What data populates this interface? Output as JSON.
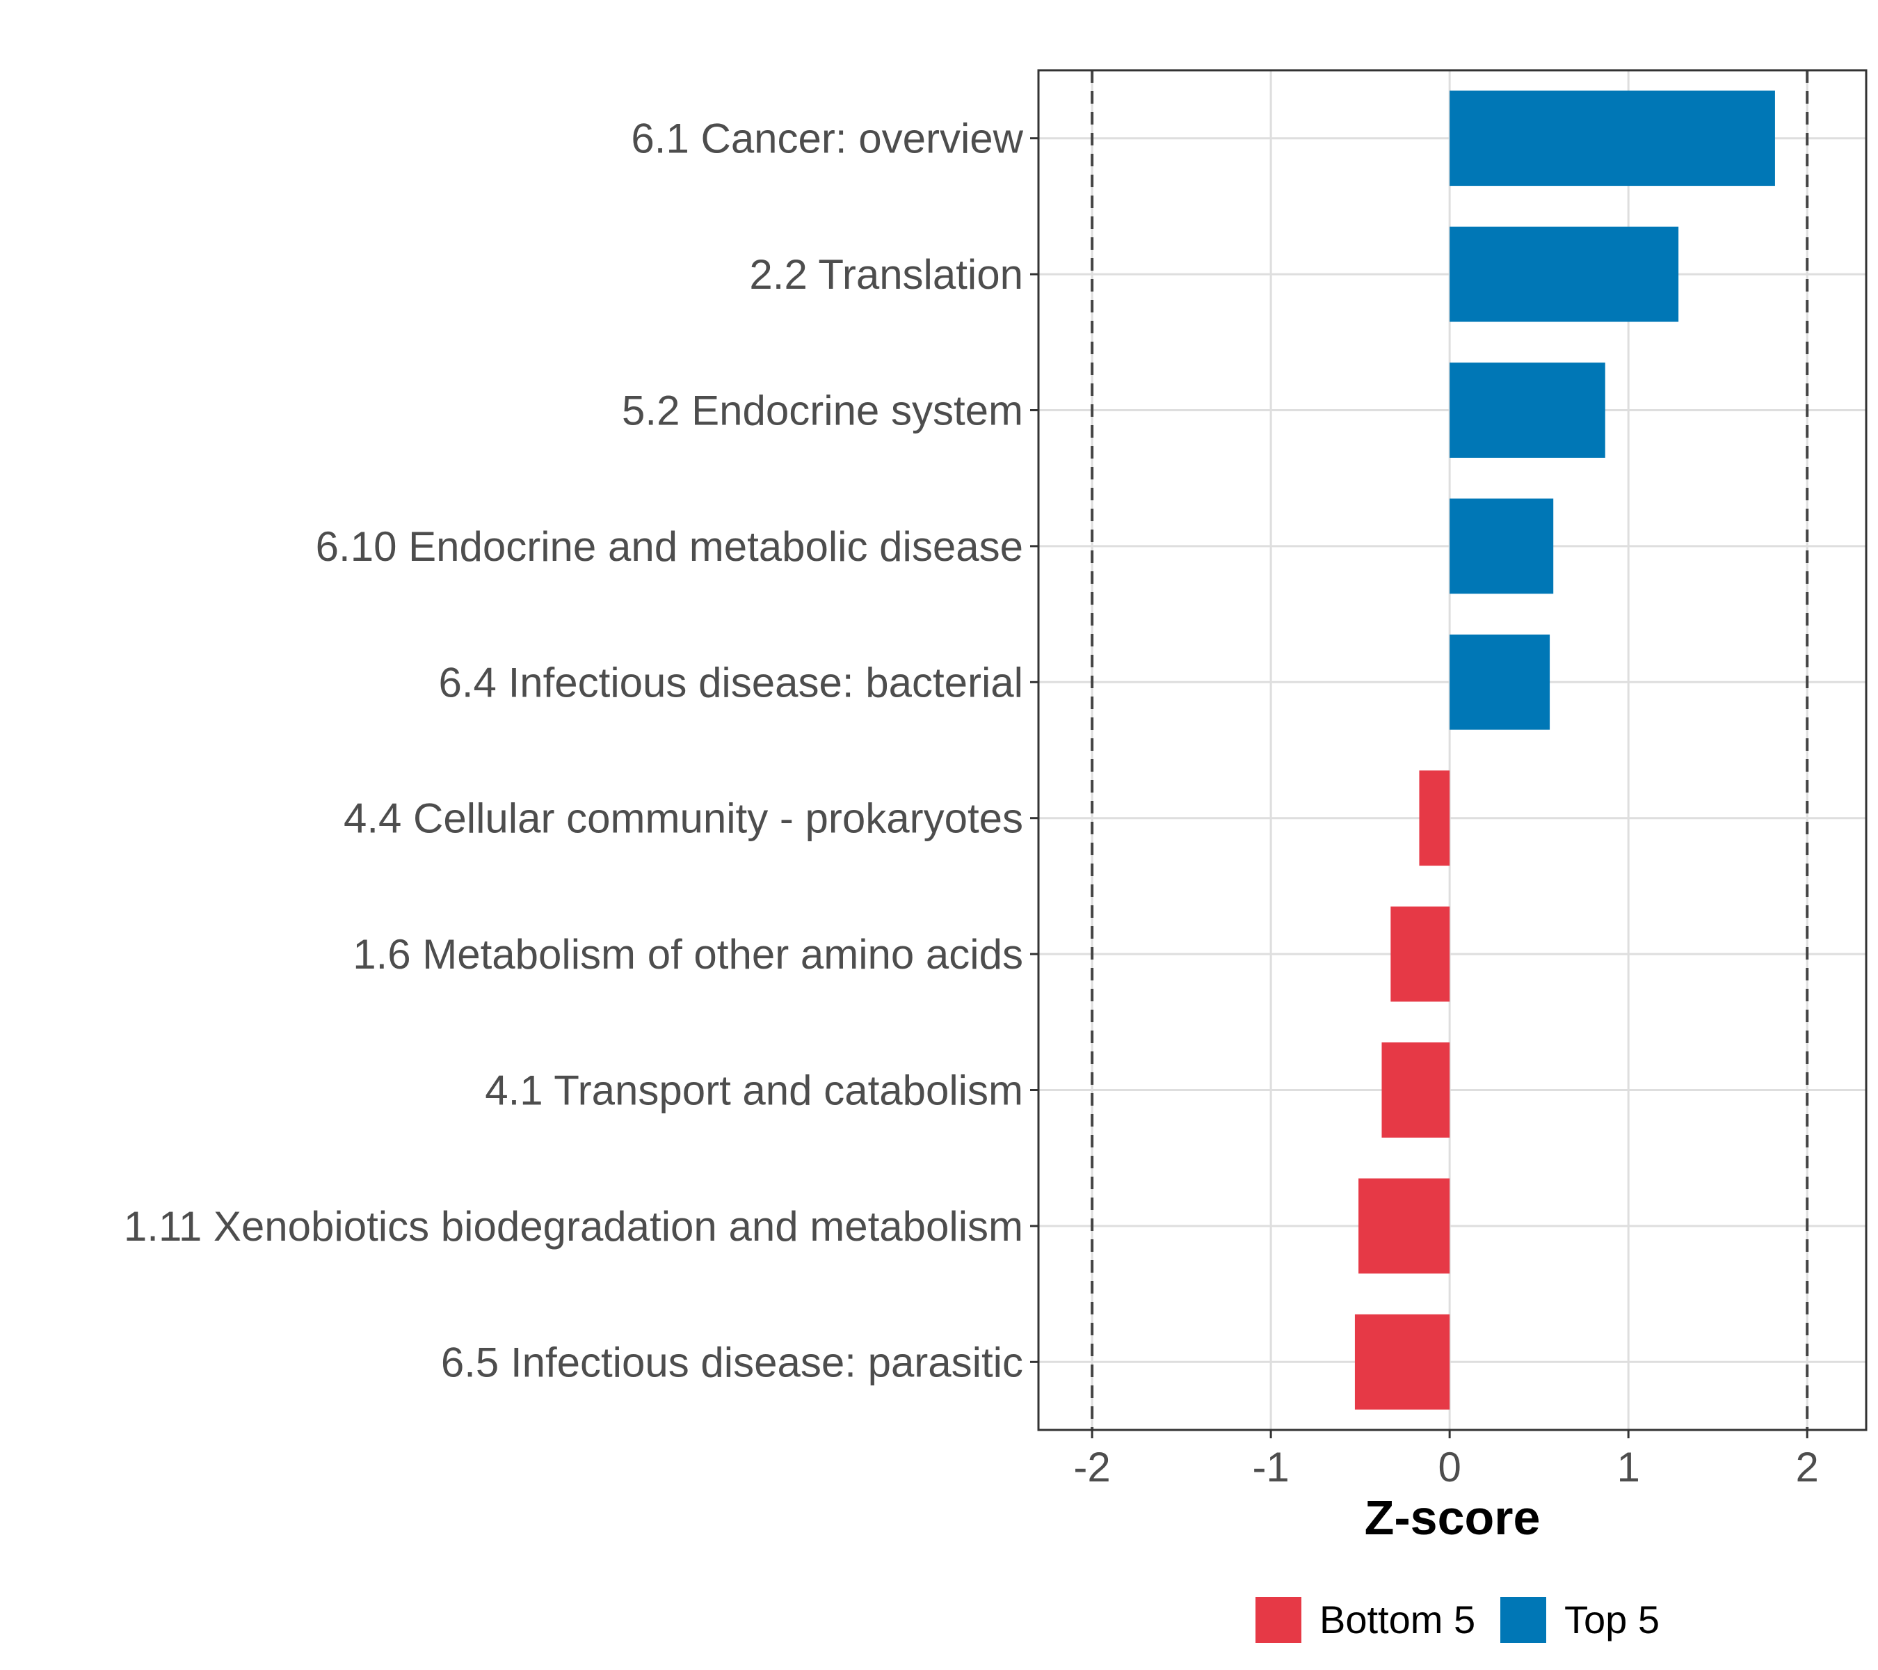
{
  "chart_data": {
    "type": "bar",
    "orientation": "horizontal",
    "title": "",
    "xlabel": "Z-score",
    "ylabel": "",
    "xlim": [
      -2.3,
      2.33
    ],
    "xticks": [
      -2,
      -1,
      0,
      1,
      2
    ],
    "xtick_labels": [
      "-2",
      "-1",
      "0",
      "1",
      "2"
    ],
    "threshold_lines": [
      -2,
      2
    ],
    "grid": true,
    "categories": [
      "6.1 Cancer: overview",
      "2.2 Translation",
      "5.2 Endocrine system",
      "6.10 Endocrine and metabolic disease",
      "6.4 Infectious disease: bacterial",
      "4.4 Cellular community - prokaryotes",
      "1.6 Metabolism of other amino acids",
      "4.1 Transport and catabolism",
      "1.11 Xenobiotics biodegradation and metabolism",
      "6.5 Infectious disease: parasitic"
    ],
    "values": [
      1.82,
      1.28,
      0.87,
      0.58,
      0.56,
      -0.17,
      -0.33,
      -0.38,
      -0.51,
      -0.53
    ],
    "groups": [
      "Top 5",
      "Top 5",
      "Top 5",
      "Top 5",
      "Top 5",
      "Bottom 5",
      "Bottom 5",
      "Bottom 5",
      "Bottom 5",
      "Bottom 5"
    ],
    "legend": {
      "position": "bottom",
      "entries": [
        {
          "label": "Bottom 5",
          "color": "#e63946"
        },
        {
          "label": "Top 5",
          "color": "#0077b6"
        }
      ]
    }
  }
}
